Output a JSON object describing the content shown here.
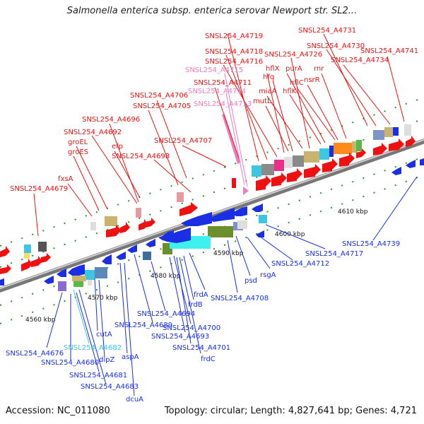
{
  "title": "Salmonella enterica subsp. enterica serovar Newport str. SL2...",
  "footer": {
    "accession": "Accession: NC_011080",
    "summary": "Topology: circular; Length: 4,827,641 bp; Genes: 4,721"
  },
  "axis": {
    "ticks": [
      "4560 kbp",
      "4570 kbp",
      "4580 kbp",
      "4590 kbp",
      "4600 kbp",
      "4610 kbp"
    ]
  },
  "colors": {
    "forward_strand": "#ee1111",
    "reverse_strand": "#1a2ee6",
    "pseudo": "#f07cc0",
    "hypothetical": "#3ec6e0",
    "backbone": "#8c8c8c",
    "tick": "#2f8f2f"
  },
  "genes_forward": [
    "SNSL254_A4719",
    "SNSL254_A4731",
    "SNSL254_A4718",
    "SNSL254_A4730",
    "SNSL254_A4716",
    "SNSL254_A4726",
    "SNSL254_A4741",
    "SNSL254_A4734",
    "SNSL254_A4715",
    "SNSL254_A4711",
    "SNSL254_A4714",
    "SNSL254_A4713",
    "SNSL254_A4706",
    "SNSL254_A4705",
    "SNSL254_A4696",
    "SNSL254_A4692",
    "SNSL254_A4707",
    "SNSL254_A4698",
    "SNSL254_A4679",
    "hflX",
    "hfq",
    "purA",
    "rnr",
    "nsrR",
    "hflC",
    "miaA",
    "hflK",
    "mutL",
    "efp",
    "groEL",
    "groES",
    "fxsA"
  ],
  "genes_reverse": [
    "SNSL254_A4739",
    "SNSL254_A4717",
    "SNSL254_A4712",
    "SNSL254_A4708",
    "SNSL254_A4694",
    "SNSL254_A4689",
    "SNSL254_A4700",
    "SNSL254_A4693",
    "SNSL254_A4701",
    "SNSL254_A4676",
    "SNSL254_A4682",
    "SNSL254_A4680",
    "SNSL254_A4681",
    "SNSL254_A4683",
    "psd",
    "rsgA",
    "frdA",
    "frdB",
    "frdC",
    "cutA",
    "dipZ",
    "aspA",
    "dcuA"
  ]
}
